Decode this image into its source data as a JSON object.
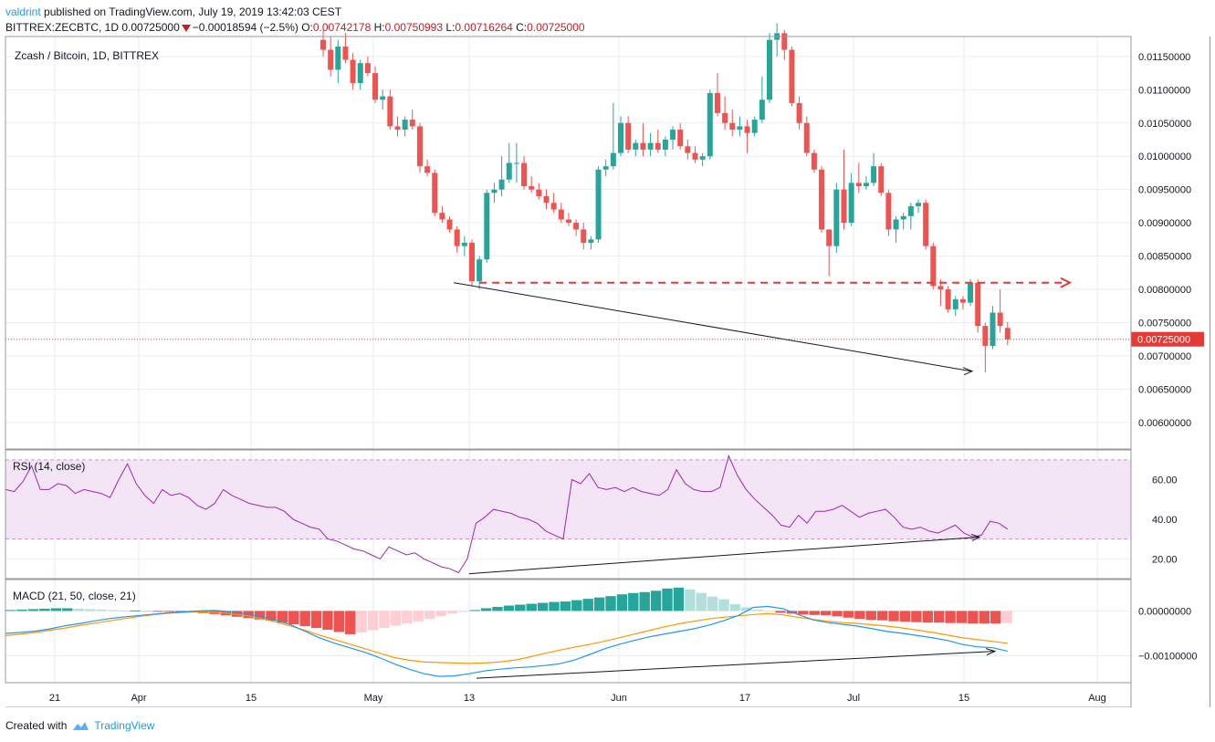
{
  "header": {
    "user": "valdrint",
    "published_text": "published on TradingView.com, July 19, 2019 13:42:03 CEST",
    "symbol": "BITTREX:ZECBTC, 1D",
    "last": "0.00725000",
    "change": "−0.00018594 (−2.5%)",
    "o_label": "O:",
    "o": "0.00742178",
    "h_label": "H:",
    "h": "0.00750993",
    "l_label": "L:",
    "l": "0.00716264",
    "c_label": "C:",
    "c": "0.00725000"
  },
  "footer": {
    "created_with": "Created with",
    "brand": "TradingView"
  },
  "colors": {
    "up": "#26a69a",
    "down": "#ef5350",
    "rsi": "#9c27b0",
    "rsi_band": "#f3e5f5",
    "macd": "#2196f3",
    "signal": "#ff9800",
    "hist_up": "#26a69a",
    "hist_up_light": "#b2dfdb",
    "hist_down": "#ef5350",
    "hist_down_light": "#ffcdd2",
    "level": "#e53935"
  },
  "chart_data": [
    {
      "type": "candlestick",
      "title": "Zcash / Bitcoin, 1D, BITTREX",
      "ylim": [
        0.0056,
        0.0118
      ],
      "y_ticks": [
        "0.00600000",
        "0.00650000",
        "0.00700000",
        "0.00750000",
        "0.00800000",
        "0.00850000",
        "0.00900000",
        "0.00950000",
        "0.01000000",
        "0.01050000",
        "0.01100000",
        "0.01150000"
      ],
      "x_ticks": [
        "21",
        "Apr",
        "15",
        "May",
        "13",
        "Jun",
        "17",
        "Jul",
        "15",
        "Aug"
      ],
      "last_price_label": "0.00725000",
      "last_price": 0.00725,
      "resistance_level": 0.0081,
      "candles": [
        {
          "o": 0.01175,
          "h": 0.0119,
          "l": 0.0115,
          "c": 0.0116
        },
        {
          "o": 0.0116,
          "h": 0.0118,
          "l": 0.0112,
          "c": 0.0113
        },
        {
          "o": 0.0113,
          "h": 0.01175,
          "l": 0.0111,
          "c": 0.01165
        },
        {
          "o": 0.01165,
          "h": 0.01185,
          "l": 0.0114,
          "c": 0.01145
        },
        {
          "o": 0.01145,
          "h": 0.01155,
          "l": 0.011,
          "c": 0.0111
        },
        {
          "o": 0.0111,
          "h": 0.01145,
          "l": 0.011,
          "c": 0.0114
        },
        {
          "o": 0.0114,
          "h": 0.0115,
          "l": 0.0112,
          "c": 0.01125
        },
        {
          "o": 0.01125,
          "h": 0.01135,
          "l": 0.0108,
          "c": 0.01085
        },
        {
          "o": 0.01085,
          "h": 0.011,
          "l": 0.0107,
          "c": 0.0109
        },
        {
          "o": 0.0109,
          "h": 0.011,
          "l": 0.0104,
          "c": 0.01045
        },
        {
          "o": 0.01045,
          "h": 0.0106,
          "l": 0.0103,
          "c": 0.0104
        },
        {
          "o": 0.0104,
          "h": 0.0106,
          "l": 0.0103,
          "c": 0.01055
        },
        {
          "o": 0.01055,
          "h": 0.0107,
          "l": 0.0104,
          "c": 0.01045
        },
        {
          "o": 0.01045,
          "h": 0.0105,
          "l": 0.00975,
          "c": 0.00985
        },
        {
          "o": 0.00985,
          "h": 0.00995,
          "l": 0.0097,
          "c": 0.00975
        },
        {
          "o": 0.00975,
          "h": 0.0098,
          "l": 0.0091,
          "c": 0.00915
        },
        {
          "o": 0.00915,
          "h": 0.00925,
          "l": 0.009,
          "c": 0.00905
        },
        {
          "o": 0.00905,
          "h": 0.0091,
          "l": 0.00885,
          "c": 0.0089
        },
        {
          "o": 0.0089,
          "h": 0.00895,
          "l": 0.00855,
          "c": 0.00865
        },
        {
          "o": 0.00865,
          "h": 0.0088,
          "l": 0.0085,
          "c": 0.0087
        },
        {
          "o": 0.0087,
          "h": 0.00875,
          "l": 0.00805,
          "c": 0.00812
        },
        {
          "o": 0.00812,
          "h": 0.0085,
          "l": 0.008,
          "c": 0.00845
        },
        {
          "o": 0.00845,
          "h": 0.0095,
          "l": 0.0084,
          "c": 0.00945
        },
        {
          "o": 0.00945,
          "h": 0.0096,
          "l": 0.0093,
          "c": 0.0095
        },
        {
          "o": 0.0095,
          "h": 0.01,
          "l": 0.0094,
          "c": 0.00965
        },
        {
          "o": 0.00965,
          "h": 0.0102,
          "l": 0.0096,
          "c": 0.0099
        },
        {
          "o": 0.0099,
          "h": 0.0102,
          "l": 0.0096,
          "c": 0.0099
        },
        {
          "o": 0.0099,
          "h": 0.01,
          "l": 0.0095,
          "c": 0.00955
        },
        {
          "o": 0.00955,
          "h": 0.0097,
          "l": 0.00945,
          "c": 0.0095
        },
        {
          "o": 0.0095,
          "h": 0.0096,
          "l": 0.00935,
          "c": 0.0094
        },
        {
          "o": 0.0094,
          "h": 0.0095,
          "l": 0.0092,
          "c": 0.0093
        },
        {
          "o": 0.0093,
          "h": 0.00945,
          "l": 0.00915,
          "c": 0.0092
        },
        {
          "o": 0.0092,
          "h": 0.0093,
          "l": 0.009,
          "c": 0.00905
        },
        {
          "o": 0.00905,
          "h": 0.00915,
          "l": 0.00895,
          "c": 0.009
        },
        {
          "o": 0.009,
          "h": 0.00905,
          "l": 0.0088,
          "c": 0.0089
        },
        {
          "o": 0.0089,
          "h": 0.009,
          "l": 0.0086,
          "c": 0.0087
        },
        {
          "o": 0.0087,
          "h": 0.0088,
          "l": 0.0086,
          "c": 0.00875
        },
        {
          "o": 0.00875,
          "h": 0.00985,
          "l": 0.0087,
          "c": 0.0098
        },
        {
          "o": 0.0098,
          "h": 0.00995,
          "l": 0.0097,
          "c": 0.00985
        },
        {
          "o": 0.00985,
          "h": 0.0108,
          "l": 0.0098,
          "c": 0.01005
        },
        {
          "o": 0.01005,
          "h": 0.0106,
          "l": 0.01,
          "c": 0.0105
        },
        {
          "o": 0.0105,
          "h": 0.0106,
          "l": 0.01005,
          "c": 0.0101
        },
        {
          "o": 0.0101,
          "h": 0.01025,
          "l": 0.01,
          "c": 0.0102
        },
        {
          "o": 0.0102,
          "h": 0.0105,
          "l": 0.01,
          "c": 0.0101
        },
        {
          "o": 0.0101,
          "h": 0.01035,
          "l": 0.01,
          "c": 0.0102
        },
        {
          "o": 0.0102,
          "h": 0.0104,
          "l": 0.01005,
          "c": 0.0101
        },
        {
          "o": 0.0101,
          "h": 0.0103,
          "l": 0.01,
          "c": 0.01025
        },
        {
          "o": 0.01025,
          "h": 0.01045,
          "l": 0.0101,
          "c": 0.0104
        },
        {
          "o": 0.0104,
          "h": 0.0105,
          "l": 0.0101,
          "c": 0.01015
        },
        {
          "o": 0.01015,
          "h": 0.01025,
          "l": 0.00995,
          "c": 0.01005
        },
        {
          "o": 0.01005,
          "h": 0.01015,
          "l": 0.0099,
          "c": 0.00995
        },
        {
          "o": 0.00995,
          "h": 0.01005,
          "l": 0.00985,
          "c": 0.01
        },
        {
          "o": 0.01,
          "h": 0.011,
          "l": 0.00995,
          "c": 0.01095
        },
        {
          "o": 0.01095,
          "h": 0.01125,
          "l": 0.0106,
          "c": 0.01065
        },
        {
          "o": 0.01065,
          "h": 0.0109,
          "l": 0.0104,
          "c": 0.0105
        },
        {
          "o": 0.0105,
          "h": 0.0107,
          "l": 0.0103,
          "c": 0.0104
        },
        {
          "o": 0.0104,
          "h": 0.0106,
          "l": 0.0103,
          "c": 0.01045
        },
        {
          "o": 0.01045,
          "h": 0.01055,
          "l": 0.01005,
          "c": 0.01035
        },
        {
          "o": 0.01035,
          "h": 0.0106,
          "l": 0.0103,
          "c": 0.01055
        },
        {
          "o": 0.01055,
          "h": 0.0112,
          "l": 0.0105,
          "c": 0.01085
        },
        {
          "o": 0.01085,
          "h": 0.01185,
          "l": 0.0108,
          "c": 0.01175
        },
        {
          "o": 0.01175,
          "h": 0.012,
          "l": 0.0115,
          "c": 0.01185
        },
        {
          "o": 0.01185,
          "h": 0.0119,
          "l": 0.01145,
          "c": 0.0116
        },
        {
          "o": 0.0116,
          "h": 0.01165,
          "l": 0.01075,
          "c": 0.0108
        },
        {
          "o": 0.0108,
          "h": 0.0109,
          "l": 0.0104,
          "c": 0.0105
        },
        {
          "o": 0.0105,
          "h": 0.0106,
          "l": 0.01,
          "c": 0.01005
        },
        {
          "o": 0.01005,
          "h": 0.0101,
          "l": 0.00975,
          "c": 0.0098
        },
        {
          "o": 0.0098,
          "h": 0.00985,
          "l": 0.00885,
          "c": 0.0089
        },
        {
          "o": 0.0089,
          "h": 0.0089,
          "l": 0.0082,
          "c": 0.00865
        },
        {
          "o": 0.00865,
          "h": 0.0096,
          "l": 0.00855,
          "c": 0.0095
        },
        {
          "o": 0.0095,
          "h": 0.0101,
          "l": 0.0089,
          "c": 0.009
        },
        {
          "o": 0.009,
          "h": 0.00975,
          "l": 0.00895,
          "c": 0.0096
        },
        {
          "o": 0.0096,
          "h": 0.0099,
          "l": 0.00945,
          "c": 0.00955
        },
        {
          "o": 0.00955,
          "h": 0.0097,
          "l": 0.0095,
          "c": 0.0096
        },
        {
          "o": 0.0096,
          "h": 0.01005,
          "l": 0.00955,
          "c": 0.00985
        },
        {
          "o": 0.00985,
          "h": 0.0099,
          "l": 0.0094,
          "c": 0.00945
        },
        {
          "o": 0.00945,
          "h": 0.0095,
          "l": 0.0088,
          "c": 0.0089
        },
        {
          "o": 0.0089,
          "h": 0.0091,
          "l": 0.0087,
          "c": 0.00905
        },
        {
          "o": 0.00905,
          "h": 0.00915,
          "l": 0.0089,
          "c": 0.0091
        },
        {
          "o": 0.0091,
          "h": 0.0093,
          "l": 0.0089,
          "c": 0.00925
        },
        {
          "o": 0.00925,
          "h": 0.00935,
          "l": 0.00915,
          "c": 0.0093
        },
        {
          "o": 0.0093,
          "h": 0.00935,
          "l": 0.0086,
          "c": 0.00865
        },
        {
          "o": 0.00865,
          "h": 0.0087,
          "l": 0.008,
          "c": 0.00805
        },
        {
          "o": 0.00805,
          "h": 0.00815,
          "l": 0.00775,
          "c": 0.008
        },
        {
          "o": 0.008,
          "h": 0.00805,
          "l": 0.00765,
          "c": 0.0077
        },
        {
          "o": 0.0077,
          "h": 0.0079,
          "l": 0.0076,
          "c": 0.00785
        },
        {
          "o": 0.00785,
          "h": 0.0079,
          "l": 0.0077,
          "c": 0.0078
        },
        {
          "o": 0.0078,
          "h": 0.00815,
          "l": 0.00775,
          "c": 0.0081
        },
        {
          "o": 0.0081,
          "h": 0.00815,
          "l": 0.00735,
          "c": 0.00745
        },
        {
          "o": 0.00745,
          "h": 0.0075,
          "l": 0.00675,
          "c": 0.00715
        },
        {
          "o": 0.00715,
          "h": 0.00775,
          "l": 0.0071,
          "c": 0.00765
        },
        {
          "o": 0.00765,
          "h": 0.008,
          "l": 0.00735,
          "c": 0.00745
        },
        {
          "o": 0.00742,
          "h": 0.00751,
          "l": 0.00716,
          "c": 0.00725
        }
      ]
    },
    {
      "type": "line",
      "title": "RSI (14, close)",
      "ylim": [
        10,
        75
      ],
      "band": [
        30,
        70
      ],
      "y_ticks": [
        "20.00",
        "40.00",
        "60.00"
      ],
      "values": [
        55,
        54,
        59,
        67,
        55,
        55,
        58,
        57,
        53,
        55,
        54,
        53,
        51,
        60,
        68,
        58,
        52,
        48,
        55,
        52,
        53,
        51,
        47,
        45,
        48,
        55,
        52,
        50,
        48,
        47,
        46,
        46,
        44,
        40,
        38,
        36,
        35,
        30,
        29,
        27,
        25,
        24,
        22,
        20,
        26,
        24,
        22,
        23,
        20,
        18,
        16,
        15,
        13,
        20,
        38,
        41,
        45,
        44,
        43,
        41,
        40,
        38,
        34,
        32,
        30,
        60,
        58,
        63,
        56,
        55,
        56,
        54,
        56,
        54,
        53,
        52,
        55,
        65,
        58,
        55,
        54,
        54,
        56,
        72,
        62,
        55,
        50,
        46,
        42,
        37,
        36,
        42,
        38,
        44,
        44,
        45,
        47,
        44,
        41,
        43,
        44,
        45,
        41,
        36,
        35,
        36,
        34,
        33,
        35,
        37,
        33,
        31,
        32,
        39,
        38,
        35
      ]
    },
    {
      "type": "line",
      "title": "MACD (21, 50, close, 21)",
      "ylim": [
        -0.0016,
        0.0007
      ],
      "y_ticks": [
        "0.00000000",
        "−0.00100000"
      ],
      "macd": [
        -0.0005,
        -0.00048,
        -0.00045,
        -0.0004,
        -0.00033,
        -0.00028,
        -0.00022,
        -0.00017,
        -0.00013,
        -0.0001,
        -7e-05,
        -4e-05,
        -2e-05,
        0.0,
        1e-05,
        -2e-05,
        -6e-05,
        -0.00012,
        -0.0002,
        -0.0003,
        -0.00045,
        -0.0006,
        -0.00072,
        -0.00082,
        -0.00092,
        -0.00104,
        -0.00118,
        -0.0013,
        -0.0014,
        -0.00146,
        -0.00145,
        -0.0014,
        -0.00134,
        -0.0013,
        -0.00127,
        -0.00125,
        -0.00122,
        -0.00118,
        -0.0011,
        -0.00098,
        -0.00085,
        -0.00075,
        -0.00066,
        -0.00058,
        -0.00052,
        -0.00046,
        -0.0004,
        -0.00032,
        -0.00022,
        -0.0001,
        8e-05,
        0.0001,
        5e-05,
        -8e-05,
        -0.0002,
        -0.00026,
        -0.0003,
        -0.00034,
        -0.0004,
        -0.00046,
        -0.0005,
        -0.00055,
        -0.0006,
        -0.00066,
        -0.00075,
        -0.0008,
        -0.00082,
        -0.0009
      ],
      "signal": [
        -0.00055,
        -0.00052,
        -0.00048,
        -0.00043,
        -0.00038,
        -0.00032,
        -0.00027,
        -0.00022,
        -0.00017,
        -0.00012,
        -8e-05,
        -5e-05,
        -3e-05,
        -2e-05,
        -3e-05,
        -6e-05,
        -0.0001,
        -0.00016,
        -0.00024,
        -0.00033,
        -0.00043,
        -0.00054,
        -0.00064,
        -0.00074,
        -0.00084,
        -0.00094,
        -0.00104,
        -0.0011,
        -0.00114,
        -0.00115,
        -0.00116,
        -0.00117,
        -0.00116,
        -0.00114,
        -0.0011,
        -0.00103,
        -0.00095,
        -0.00088,
        -0.00081,
        -0.00075,
        -0.00068,
        -0.0006,
        -0.00052,
        -0.00044,
        -0.00036,
        -0.00029,
        -0.00023,
        -0.00018,
        -0.00014,
        -0.00011,
        -8e-05,
        -6e-05,
        -9e-05,
        -0.00014,
        -0.00019,
        -0.00023,
        -0.00026,
        -0.00028,
        -0.00031,
        -0.00034,
        -0.00038,
        -0.00043,
        -0.00048,
        -0.00054,
        -0.0006,
        -0.00064,
        -0.00068,
        -0.00072
      ],
      "histogram": [
        2e-05,
        3e-05,
        4e-05,
        5e-05,
        6e-05,
        6e-05,
        5e-05,
        4e-05,
        3e-05,
        2e-05,
        1e-05,
        1e-05,
        0.0,
        -1e-05,
        -1e-05,
        -2e-05,
        -3e-05,
        -5e-05,
        -7e-05,
        -0.0001,
        -0.00013,
        -0.00016,
        -0.00019,
        -0.00022,
        -0.00026,
        -0.0003,
        -0.00034,
        -0.00038,
        -0.00042,
        -0.00047,
        -0.00052,
        -0.00048,
        -0.00043,
        -0.00038,
        -0.00033,
        -0.00028,
        -0.00023,
        -0.00018,
        -0.00012,
        -6e-05,
        -2e-05,
        2e-05,
        6e-05,
        9e-05,
        0.00012,
        0.00014,
        0.00016,
        0.00018,
        0.0002,
        0.00021,
        0.00024,
        0.00027,
        0.0003,
        0.00033,
        0.00037,
        0.0004,
        0.00042,
        0.00045,
        0.0005,
        0.00052,
        0.00048,
        0.0004,
        0.00032,
        0.00026,
        0.00015,
        8e-05,
        3e-05,
        -2e-05,
        -4e-05,
        -6e-05,
        -8e-05,
        -9e-05,
        -0.0001,
        -0.00012,
        -0.00015,
        -0.00018,
        -0.0002,
        -0.00021,
        -0.00023,
        -0.00024,
        -0.00025,
        -0.00026,
        -0.00026,
        -0.00027,
        -0.00027,
        -0.00028,
        -0.00028,
        -0.00028,
        -0.00027
      ]
    }
  ]
}
